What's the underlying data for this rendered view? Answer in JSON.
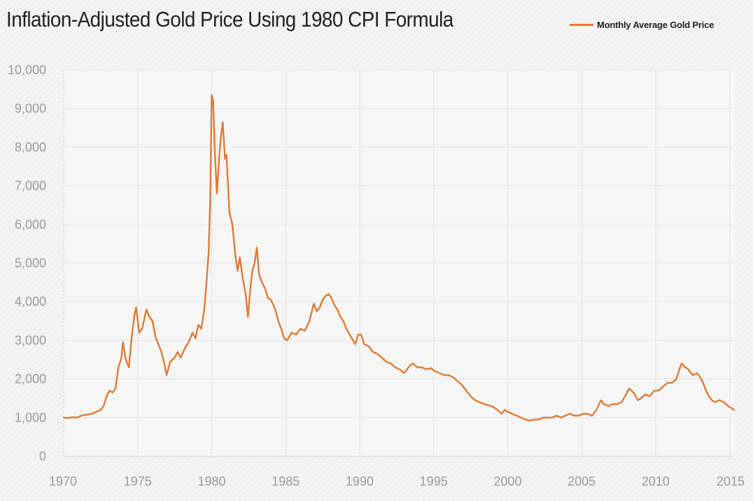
{
  "chart_data": {
    "type": "line",
    "title": "Inflation-Adjusted Gold Price Using 1980 CPI Formula",
    "xlabel": "",
    "ylabel": "",
    "xlim": [
      1970,
      2015.3
    ],
    "ylim": [
      0,
      10000
    ],
    "x_ticks": [
      1970,
      1975,
      1980,
      1985,
      1990,
      1995,
      2000,
      2005,
      2010,
      2015
    ],
    "x_tick_labels": [
      "1970",
      "1975",
      "1980",
      "1985",
      "1990",
      "1995",
      "2000",
      "2005",
      "2010",
      "2015"
    ],
    "y_ticks": [
      0,
      1000,
      2000,
      3000,
      4000,
      5000,
      6000,
      7000,
      8000,
      9000,
      10000
    ],
    "y_tick_labels": [
      "0",
      "1,000",
      "2,000",
      "3,000",
      "4,000",
      "5,000",
      "6,000",
      "7,000",
      "8,000",
      "9,000",
      "10,000"
    ],
    "grid": true,
    "legend_position": "top-right",
    "series": [
      {
        "name": "Monthly Average Gold Price",
        "color": "#e07b35",
        "points": [
          [
            1970.0,
            1000
          ],
          [
            1970.3,
            990
          ],
          [
            1970.6,
            1010
          ],
          [
            1970.9,
            1000
          ],
          [
            1971.2,
            1050
          ],
          [
            1971.6,
            1080
          ],
          [
            1971.9,
            1100
          ],
          [
            1972.2,
            1150
          ],
          [
            1972.5,
            1200
          ],
          [
            1972.7,
            1300
          ],
          [
            1972.9,
            1550
          ],
          [
            1973.1,
            1700
          ],
          [
            1973.3,
            1650
          ],
          [
            1973.5,
            1750
          ],
          [
            1973.7,
            2300
          ],
          [
            1973.9,
            2550
          ],
          [
            1974.0,
            2950
          ],
          [
            1974.2,
            2500
          ],
          [
            1974.4,
            2300
          ],
          [
            1974.6,
            3100
          ],
          [
            1974.8,
            3700
          ],
          [
            1974.9,
            3850
          ],
          [
            1975.1,
            3200
          ],
          [
            1975.3,
            3300
          ],
          [
            1975.5,
            3650
          ],
          [
            1975.6,
            3800
          ],
          [
            1975.8,
            3600
          ],
          [
            1976.0,
            3500
          ],
          [
            1976.2,
            3100
          ],
          [
            1976.4,
            2900
          ],
          [
            1976.6,
            2700
          ],
          [
            1976.8,
            2400
          ],
          [
            1976.95,
            2100
          ],
          [
            1977.2,
            2450
          ],
          [
            1977.5,
            2550
          ],
          [
            1977.7,
            2700
          ],
          [
            1977.9,
            2550
          ],
          [
            1978.2,
            2800
          ],
          [
            1978.5,
            3000
          ],
          [
            1978.7,
            3200
          ],
          [
            1978.9,
            3050
          ],
          [
            1979.1,
            3400
          ],
          [
            1979.3,
            3300
          ],
          [
            1979.5,
            3800
          ],
          [
            1979.65,
            4500
          ],
          [
            1979.8,
            5300
          ],
          [
            1979.9,
            6600
          ],
          [
            1980.0,
            9350
          ],
          [
            1980.1,
            9200
          ],
          [
            1980.2,
            8000
          ],
          [
            1980.35,
            6800
          ],
          [
            1980.5,
            7700
          ],
          [
            1980.6,
            8200
          ],
          [
            1980.75,
            8650
          ],
          [
            1980.9,
            7700
          ],
          [
            1981.0,
            7800
          ],
          [
            1981.2,
            6300
          ],
          [
            1981.4,
            6000
          ],
          [
            1981.6,
            5200
          ],
          [
            1981.75,
            4800
          ],
          [
            1981.9,
            5150
          ],
          [
            1982.1,
            4600
          ],
          [
            1982.3,
            4200
          ],
          [
            1982.45,
            3600
          ],
          [
            1982.6,
            4300
          ],
          [
            1982.75,
            4800
          ],
          [
            1982.9,
            5000
          ],
          [
            1983.05,
            5400
          ],
          [
            1983.2,
            4700
          ],
          [
            1983.4,
            4500
          ],
          [
            1983.6,
            4350
          ],
          [
            1983.8,
            4100
          ],
          [
            1984.0,
            4050
          ],
          [
            1984.3,
            3800
          ],
          [
            1984.5,
            3500
          ],
          [
            1984.7,
            3300
          ],
          [
            1984.9,
            3050
          ],
          [
            1985.1,
            3000
          ],
          [
            1985.4,
            3200
          ],
          [
            1985.7,
            3150
          ],
          [
            1986.0,
            3300
          ],
          [
            1986.3,
            3250
          ],
          [
            1986.6,
            3500
          ],
          [
            1986.9,
            3950
          ],
          [
            1987.1,
            3750
          ],
          [
            1987.3,
            3850
          ],
          [
            1987.5,
            4050
          ],
          [
            1987.7,
            4150
          ],
          [
            1987.9,
            4200
          ],
          [
            1988.1,
            4100
          ],
          [
            1988.3,
            3900
          ],
          [
            1988.5,
            3800
          ],
          [
            1988.7,
            3600
          ],
          [
            1988.9,
            3500
          ],
          [
            1989.1,
            3300
          ],
          [
            1989.4,
            3100
          ],
          [
            1989.7,
            2900
          ],
          [
            1989.9,
            3150
          ],
          [
            1990.1,
            3150
          ],
          [
            1990.3,
            2900
          ],
          [
            1990.6,
            2850
          ],
          [
            1990.9,
            2700
          ],
          [
            1991.2,
            2650
          ],
          [
            1991.5,
            2550
          ],
          [
            1991.8,
            2450
          ],
          [
            1992.1,
            2400
          ],
          [
            1992.4,
            2300
          ],
          [
            1992.7,
            2250
          ],
          [
            1993.0,
            2150
          ],
          [
            1993.2,
            2250
          ],
          [
            1993.4,
            2350
          ],
          [
            1993.6,
            2400
          ],
          [
            1993.9,
            2300
          ],
          [
            1994.2,
            2300
          ],
          [
            1994.5,
            2250
          ],
          [
            1994.8,
            2280
          ],
          [
            1995.1,
            2200
          ],
          [
            1995.4,
            2150
          ],
          [
            1995.7,
            2100
          ],
          [
            1996.0,
            2100
          ],
          [
            1996.3,
            2050
          ],
          [
            1996.6,
            1950
          ],
          [
            1996.9,
            1850
          ],
          [
            1997.2,
            1700
          ],
          [
            1997.5,
            1550
          ],
          [
            1997.8,
            1450
          ],
          [
            1998.1,
            1400
          ],
          [
            1998.4,
            1350
          ],
          [
            1998.7,
            1320
          ],
          [
            1999.0,
            1280
          ],
          [
            1999.3,
            1200
          ],
          [
            1999.6,
            1100
          ],
          [
            1999.8,
            1200
          ],
          [
            2000.0,
            1150
          ],
          [
            2000.3,
            1100
          ],
          [
            2000.6,
            1050
          ],
          [
            2000.9,
            1000
          ],
          [
            2001.2,
            950
          ],
          [
            2001.5,
            920
          ],
          [
            2001.8,
            950
          ],
          [
            2002.1,
            950
          ],
          [
            2002.4,
            1000
          ],
          [
            2002.7,
            1000
          ],
          [
            2003.0,
            1000
          ],
          [
            2003.3,
            1050
          ],
          [
            2003.6,
            1000
          ],
          [
            2003.9,
            1050
          ],
          [
            2004.2,
            1100
          ],
          [
            2004.5,
            1050
          ],
          [
            2004.8,
            1050
          ],
          [
            2005.1,
            1100
          ],
          [
            2005.4,
            1100
          ],
          [
            2005.7,
            1050
          ],
          [
            2006.0,
            1200
          ],
          [
            2006.3,
            1450
          ],
          [
            2006.5,
            1350
          ],
          [
            2006.8,
            1300
          ],
          [
            2007.1,
            1350
          ],
          [
            2007.4,
            1350
          ],
          [
            2007.7,
            1400
          ],
          [
            2008.0,
            1600
          ],
          [
            2008.2,
            1750
          ],
          [
            2008.5,
            1650
          ],
          [
            2008.8,
            1450
          ],
          [
            2009.0,
            1500
          ],
          [
            2009.3,
            1600
          ],
          [
            2009.6,
            1550
          ],
          [
            2009.9,
            1700
          ],
          [
            2010.2,
            1700
          ],
          [
            2010.5,
            1800
          ],
          [
            2010.8,
            1900
          ],
          [
            2011.1,
            1900
          ],
          [
            2011.4,
            2000
          ],
          [
            2011.6,
            2250
          ],
          [
            2011.75,
            2400
          ],
          [
            2012.0,
            2300
          ],
          [
            2012.2,
            2250
          ],
          [
            2012.5,
            2100
          ],
          [
            2012.8,
            2150
          ],
          [
            2013.0,
            2050
          ],
          [
            2013.2,
            1900
          ],
          [
            2013.4,
            1700
          ],
          [
            2013.6,
            1550
          ],
          [
            2013.8,
            1450
          ],
          [
            2014.0,
            1400
          ],
          [
            2014.3,
            1450
          ],
          [
            2014.6,
            1400
          ],
          [
            2014.9,
            1300
          ],
          [
            2015.1,
            1250
          ],
          [
            2015.3,
            1200
          ]
        ]
      }
    ]
  }
}
